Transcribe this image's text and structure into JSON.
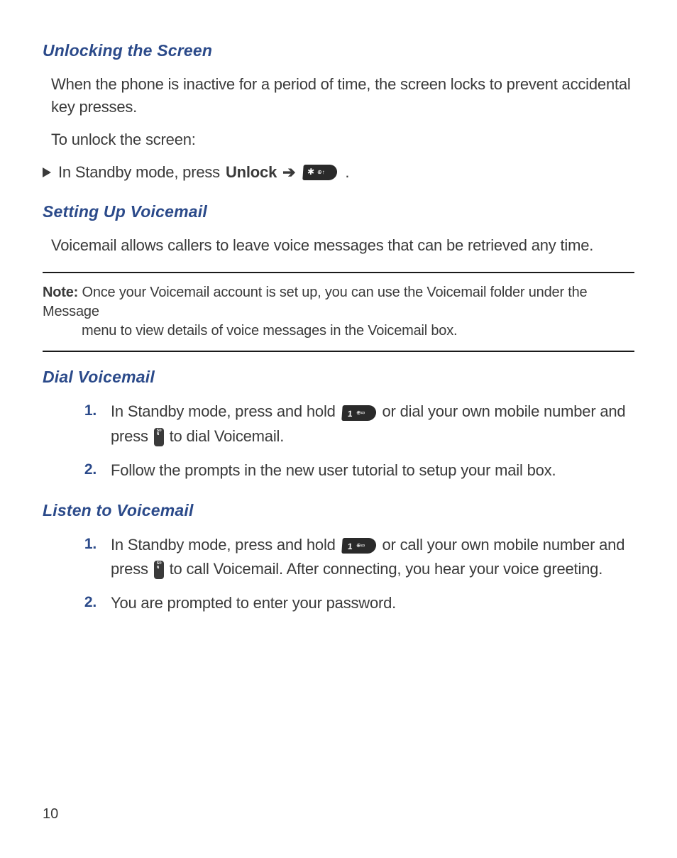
{
  "colors": {
    "heading": "#2b4a8a",
    "body": "#3a3a3a",
    "background": "#ffffff",
    "rule": "#1a1a1a",
    "list_number": "#2b4a8a"
  },
  "typography": {
    "heading_fontsize": 23,
    "body_fontsize": 22,
    "note_fontsize": 20,
    "page_number_fontsize": 20
  },
  "section1": {
    "heading": "Unlocking the Screen",
    "para1": "When the phone is inactive for a period of time, the screen locks to prevent accidental key presses.",
    "para2": "To unlock the screen:",
    "bullet_prefix": "In Standby mode, press ",
    "bullet_bold": "Unlock",
    "bullet_arrow": "➔",
    "bullet_period": "."
  },
  "section2": {
    "heading": "Setting Up Voicemail",
    "para1": "Voicemail allows callers to leave voice messages that can be retrieved any time."
  },
  "note": {
    "label": "Note:",
    "line1": " Once your Voicemail account is set up, you can use the Voicemail folder under the Message",
    "line2": "menu to view details of voice messages in the Voicemail box."
  },
  "section3": {
    "heading": "Dial Voicemail",
    "items": [
      {
        "num": "1.",
        "part_a": "In Standby mode, press and hold ",
        "part_b": " or dial your own mobile number and press ",
        "part_c": " to dial Voicemail."
      },
      {
        "num": "2.",
        "text": "Follow the prompts in the new user tutorial to setup your mail box."
      }
    ]
  },
  "section4": {
    "heading": "Listen to Voicemail",
    "items": [
      {
        "num": "1.",
        "part_a": "In Standby mode, press and hold ",
        "part_b": " or call your own mobile number and press ",
        "part_c": " to call Voicemail. After connecting, you hear your voice greeting."
      },
      {
        "num": "2.",
        "text": "You are prompted to enter your password."
      }
    ]
  },
  "page_number": "10"
}
